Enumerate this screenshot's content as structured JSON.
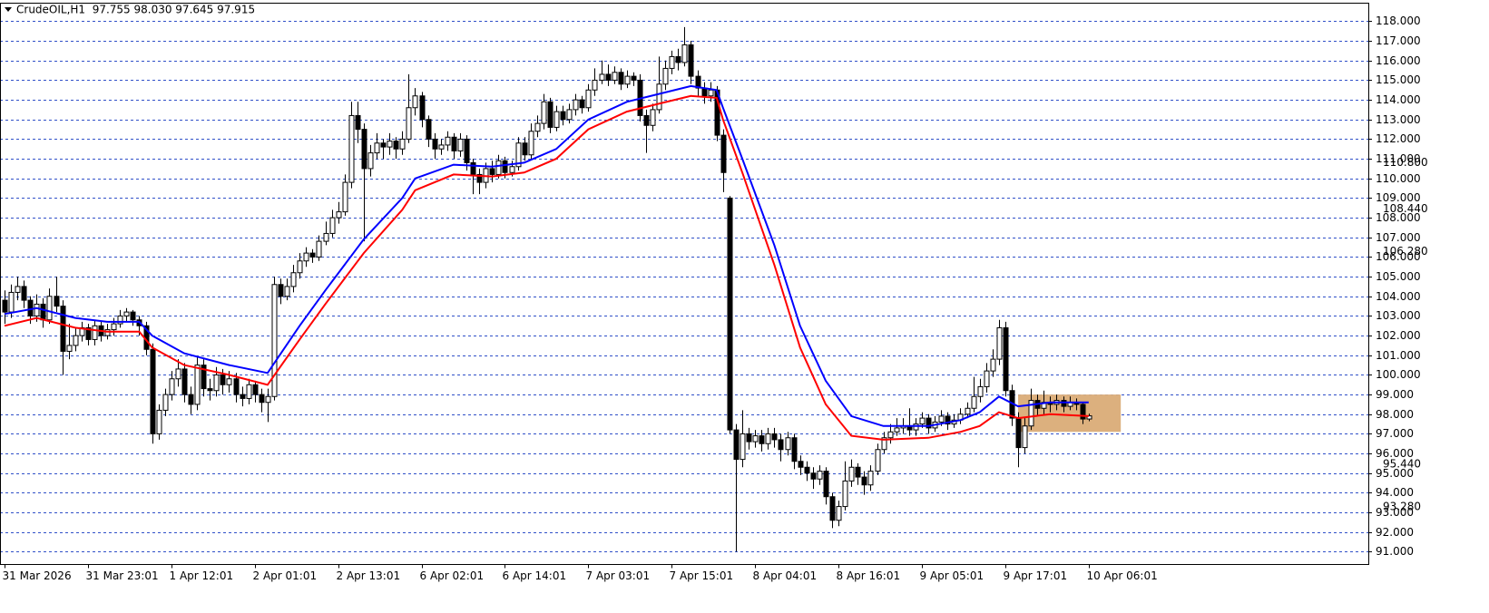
{
  "chart_data": {
    "type": "candlestick",
    "title": "CrudeOIL,H1  97.755 98.030 97.645 97.915",
    "categories": [
      "31 Mar 2026",
      null,
      null,
      null,
      null,
      null,
      null,
      null,
      null,
      null,
      null,
      null,
      null,
      "31 Mar 23:01",
      null,
      null,
      null,
      null,
      null,
      null,
      null,
      null,
      null,
      null,
      null,
      null,
      "1 Apr 12:01",
      null,
      null,
      null,
      null,
      null,
      null,
      null,
      null,
      null,
      null,
      null,
      null,
      "2 Apr 01:01",
      null,
      null,
      null,
      null,
      null,
      null,
      null,
      null,
      null,
      null,
      null,
      null,
      "2 Apr 13:01",
      null,
      null,
      null,
      null,
      null,
      null,
      null,
      null,
      null,
      null,
      null,
      null,
      "6 Apr 02:01",
      null,
      null,
      null,
      null,
      null,
      null,
      null,
      null,
      null,
      null,
      null,
      null,
      "6 Apr 14:01",
      null,
      null,
      null,
      null,
      null,
      null,
      null,
      null,
      null,
      null,
      null,
      null,
      "7 Apr 03:01",
      null,
      null,
      null,
      null,
      null,
      null,
      null,
      null,
      null,
      null,
      null,
      null,
      "7 Apr 15:01",
      null,
      null,
      null,
      null,
      null,
      null,
      null,
      null,
      null,
      null,
      null,
      null,
      "8 Apr 04:01",
      null,
      null,
      null,
      null,
      null,
      null,
      null,
      null,
      null,
      null,
      null,
      null,
      "8 Apr 16:01",
      null,
      null,
      null,
      null,
      null,
      null,
      null,
      null,
      null,
      null,
      null,
      null,
      "9 Apr 05:01",
      null,
      null,
      null,
      null,
      null,
      null,
      null,
      null,
      null,
      null,
      null,
      null,
      "9 Apr 17:01",
      null,
      null,
      null,
      null,
      null,
      null,
      null,
      null,
      null,
      null,
      null,
      null,
      "10 Apr 06:01"
    ],
    "open": [
      103.8,
      103.2,
      104.2,
      104.5,
      103.8,
      103.0,
      103.6,
      102.8,
      104.0,
      103.5,
      101.2,
      101.5,
      102.0,
      102.4,
      101.8,
      102.5,
      102.0,
      102.3,
      102.6,
      103.0,
      103.2,
      102.8,
      102.5,
      101.3,
      97.0,
      98.2,
      99.0,
      99.8,
      100.3,
      99.0,
      98.5,
      100.5,
      99.3,
      99.2,
      100.0,
      99.5,
      99.8,
      99.0,
      98.8,
      99.5,
      99.0,
      98.6,
      98.9,
      104.6,
      104.0,
      104.5,
      105.2,
      105.8,
      106.2,
      106.0,
      106.8,
      107.2,
      108.0,
      108.3,
      109.8,
      113.2,
      112.5,
      110.5,
      111.3,
      111.8,
      111.6,
      111.9,
      111.5,
      112.0,
      113.6,
      114.2,
      113.0,
      112.0,
      111.5,
      111.7,
      112.1,
      111.4,
      112.0,
      110.8,
      110.2,
      109.8,
      110.5,
      110.2,
      110.9,
      110.3,
      110.6,
      111.8,
      111.2,
      112.4,
      112.8,
      113.9,
      112.6,
      113.4,
      113.0,
      113.5,
      114.0,
      113.6,
      114.5,
      115.0,
      115.3,
      115.0,
      115.4,
      114.8,
      115.2,
      115.0,
      113.2,
      112.7,
      113.5,
      114.8,
      115.6,
      116.2,
      115.9,
      116.8,
      115.2,
      114.6,
      114.2,
      114.5,
      112.2,
      109.0,
      97.2,
      95.7,
      97.0,
      96.6,
      96.9,
      96.5,
      97.0,
      96.7,
      96.2,
      96.8,
      95.6,
      95.3,
      95.0,
      94.7,
      95.1,
      93.8,
      92.6,
      93.3,
      94.6,
      95.3,
      94.8,
      94.4,
      95.1,
      96.2,
      96.8,
      97.1,
      97.3,
      97.4,
      97.2,
      97.5,
      97.8,
      97.3,
      97.6,
      97.9,
      97.5,
      97.7,
      98.0,
      98.3,
      98.9,
      99.4,
      100.2,
      100.8,
      102.4,
      99.2,
      97.8,
      96.3,
      97.4,
      98.7,
      98.3,
      98.6,
      98.5,
      98.7,
      98.4,
      98.6,
      98.5,
      97.755
    ],
    "high": [
      104.3,
      104.6,
      105.0,
      104.8,
      104.0,
      104.1,
      103.9,
      104.4,
      105.0,
      103.8,
      102.6,
      102.4,
      102.7,
      102.6,
      102.8,
      102.7,
      102.6,
      102.9,
      103.3,
      103.4,
      103.3,
      103.0,
      102.7,
      101.6,
      98.5,
      99.3,
      100.2,
      100.8,
      100.6,
      99.4,
      100.9,
      100.8,
      99.8,
      100.4,
      100.3,
      100.2,
      100.1,
      99.4,
      99.8,
      99.7,
      99.3,
      99.3,
      105.0,
      104.9,
      104.9,
      105.6,
      106.2,
      106.5,
      106.4,
      107.1,
      107.8,
      108.4,
      108.8,
      110.2,
      113.9,
      113.9,
      112.8,
      111.7,
      112.3,
      112.0,
      112.3,
      112.1,
      112.4,
      115.3,
      114.6,
      114.4,
      113.2,
      112.3,
      112.0,
      112.4,
      112.3,
      112.3,
      112.2,
      111.0,
      110.5,
      110.8,
      110.9,
      111.2,
      111.1,
      110.9,
      112.1,
      112.1,
      112.8,
      113.2,
      114.3,
      114.1,
      113.7,
      113.7,
      113.8,
      114.3,
      114.2,
      114.8,
      115.6,
      116.0,
      115.8,
      115.7,
      115.6,
      115.5,
      115.4,
      115.3,
      113.5,
      113.8,
      116.2,
      116.0,
      116.5,
      116.6,
      117.7,
      117.0,
      115.5,
      114.9,
      114.9,
      114.7,
      112.5,
      109.1,
      97.5,
      98.2,
      97.3,
      97.2,
      97.2,
      97.3,
      97.3,
      97.0,
      97.1,
      97.0,
      95.9,
      95.6,
      95.3,
      95.4,
      95.3,
      94.0,
      93.6,
      95.6,
      95.7,
      95.5,
      95.1,
      95.4,
      96.5,
      97.1,
      97.5,
      97.8,
      97.8,
      98.3,
      97.8,
      98.1,
      98.0,
      97.9,
      98.2,
      98.1,
      98.0,
      98.3,
      98.6,
      99.9,
      99.8,
      100.6,
      101.3,
      102.8,
      102.7,
      99.5,
      98.1,
      97.8,
      99.3,
      99.0,
      99.2,
      98.9,
      99.0,
      98.9,
      98.9,
      98.8,
      98.6,
      98.03
    ],
    "low": [
      102.6,
      102.9,
      103.8,
      103.4,
      102.6,
      102.7,
      102.4,
      102.6,
      103.2,
      100.0,
      100.8,
      101.2,
      101.7,
      101.5,
      101.5,
      101.7,
      101.8,
      102.0,
      102.4,
      102.7,
      102.5,
      102.0,
      101.0,
      96.5,
      96.7,
      97.9,
      98.7,
      99.4,
      98.6,
      98.0,
      98.2,
      98.9,
      98.7,
      98.9,
      99.0,
      99.1,
      98.6,
      98.4,
      98.5,
      98.6,
      98.1,
      97.6,
      98.7,
      103.6,
      103.8,
      104.2,
      104.9,
      105.5,
      105.7,
      105.8,
      106.6,
      107.0,
      107.7,
      108.1,
      109.5,
      111.8,
      106.8,
      110.1,
      111.0,
      111.0,
      111.2,
      111.0,
      111.2,
      111.8,
      113.2,
      112.6,
      111.6,
      111.0,
      111.2,
      111.4,
      111.0,
      111.1,
      110.4,
      109.2,
      109.2,
      109.5,
      109.8,
      110.0,
      110.0,
      110.1,
      110.4,
      110.9,
      111.0,
      112.1,
      112.5,
      112.3,
      112.4,
      112.7,
      112.8,
      113.2,
      113.3,
      113.4,
      114.2,
      114.8,
      114.7,
      114.8,
      114.5,
      114.6,
      114.7,
      112.9,
      111.3,
      112.4,
      113.3,
      114.5,
      115.3,
      115.5,
      115.7,
      114.8,
      114.2,
      113.8,
      113.9,
      111.9,
      109.3,
      97.0,
      91.0,
      95.3,
      96.2,
      96.3,
      96.1,
      96.2,
      96.3,
      95.6,
      95.9,
      95.2,
      94.9,
      94.6,
      94.2,
      94.4,
      93.4,
      92.2,
      92.3,
      93.1,
      94.3,
      94.4,
      93.9,
      94.1,
      94.9,
      96.0,
      96.5,
      96.9,
      97.0,
      96.9,
      96.9,
      97.3,
      97.0,
      97.1,
      97.4,
      97.2,
      97.3,
      97.5,
      97.8,
      98.1,
      98.6,
      99.1,
      99.9,
      100.5,
      98.9,
      97.4,
      95.3,
      96.0,
      97.2,
      97.9,
      98.0,
      98.1,
      98.2,
      98.1,
      98.2,
      98.2,
      97.5,
      97.645
    ],
    "close": [
      103.2,
      104.2,
      104.5,
      103.8,
      103.0,
      103.6,
      102.8,
      104.0,
      103.5,
      101.2,
      101.5,
      102.0,
      102.4,
      101.8,
      102.5,
      102.0,
      102.3,
      102.6,
      103.0,
      103.2,
      102.8,
      102.5,
      101.3,
      97.0,
      98.2,
      99.0,
      99.8,
      100.3,
      99.0,
      98.5,
      100.5,
      99.3,
      99.2,
      100.0,
      99.5,
      99.8,
      99.0,
      98.8,
      99.5,
      99.0,
      98.6,
      98.9,
      104.6,
      104.0,
      104.5,
      105.2,
      105.8,
      106.2,
      106.0,
      106.8,
      107.2,
      108.0,
      108.3,
      109.8,
      113.2,
      112.5,
      110.5,
      111.3,
      111.8,
      111.6,
      111.9,
      111.5,
      112.0,
      113.6,
      114.2,
      113.0,
      112.0,
      111.5,
      111.7,
      112.1,
      111.4,
      112.0,
      110.8,
      110.2,
      109.8,
      110.5,
      110.2,
      110.9,
      110.3,
      110.6,
      111.8,
      111.2,
      112.4,
      112.8,
      113.9,
      112.6,
      113.4,
      113.0,
      113.5,
      114.0,
      113.6,
      114.5,
      115.0,
      115.3,
      115.0,
      115.4,
      114.8,
      115.2,
      115.0,
      113.2,
      112.7,
      113.5,
      114.8,
      115.6,
      116.2,
      115.9,
      116.8,
      115.2,
      114.6,
      114.2,
      114.5,
      112.2,
      110.3,
      97.2,
      95.7,
      97.0,
      96.6,
      96.9,
      96.5,
      97.0,
      96.7,
      96.2,
      96.8,
      95.6,
      95.3,
      95.0,
      94.7,
      95.1,
      93.8,
      92.6,
      93.3,
      94.6,
      95.3,
      94.8,
      94.4,
      95.1,
      96.2,
      96.8,
      97.1,
      97.3,
      97.4,
      97.2,
      97.5,
      97.8,
      97.3,
      97.6,
      97.9,
      97.5,
      97.7,
      98.0,
      98.3,
      98.9,
      99.4,
      100.2,
      100.8,
      102.4,
      99.2,
      97.8,
      96.3,
      97.4,
      98.7,
      98.3,
      98.6,
      98.5,
      98.7,
      98.4,
      98.6,
      98.5,
      97.755,
      97.915
    ],
    "series": [
      {
        "color": "#0000ff",
        "x": [
          0,
          5,
          11,
          16,
          21,
          23,
          28,
          35,
          41,
          46,
          50,
          56,
          62,
          64,
          70,
          76,
          81,
          86,
          91,
          97,
          102,
          107,
          111,
          112,
          115,
          120,
          124,
          128,
          132,
          137,
          144,
          149,
          152,
          155,
          158,
          163,
          169
        ],
        "values": [
          103.1,
          103.4,
          102.9,
          102.7,
          102.7,
          102.0,
          101.1,
          100.5,
          100.1,
          102.5,
          104.3,
          106.9,
          109.0,
          110.0,
          110.7,
          110.6,
          110.8,
          111.5,
          113.0,
          113.9,
          114.3,
          114.7,
          114.5,
          113.6,
          111.0,
          106.6,
          102.5,
          99.7,
          97.9,
          97.4,
          97.4,
          97.7,
          98.1,
          98.9,
          98.4,
          98.6,
          98.6
        ]
      },
      {
        "color": "#ff0000",
        "x": [
          0,
          5,
          11,
          16,
          21,
          23,
          28,
          35,
          41,
          46,
          50,
          56,
          62,
          64,
          70,
          76,
          81,
          86,
          91,
          97,
          102,
          107,
          111,
          112,
          115,
          120,
          124,
          128,
          132,
          137,
          144,
          149,
          152,
          155,
          158,
          163,
          169
        ],
        "values": [
          102.5,
          102.9,
          102.4,
          102.2,
          102.2,
          101.4,
          100.5,
          100.0,
          99.5,
          101.8,
          103.6,
          106.2,
          108.4,
          109.4,
          110.2,
          110.1,
          110.3,
          111.0,
          112.5,
          113.4,
          113.8,
          114.2,
          114.1,
          113.0,
          110.3,
          105.6,
          101.4,
          98.5,
          96.9,
          96.7,
          96.8,
          97.1,
          97.4,
          98.1,
          97.8,
          98.0,
          97.9
        ]
      }
    ],
    "zone": {
      "x": [
        158,
        174
      ],
      "y": [
        97.1,
        99.0
      ],
      "color": "#dcb07e"
    },
    "ylim": [
      90.35,
      118.92
    ],
    "yticks": [
      {
        "value": 91,
        "label": "91.000"
      },
      {
        "value": 92,
        "label": "92.000"
      },
      {
        "value": 93,
        "label": "93.000"
      },
      {
        "value": 94,
        "label": "94.000"
      },
      {
        "value": 95,
        "label": "95.000"
      },
      {
        "value": 96,
        "label": "96.000"
      },
      {
        "value": 97,
        "label": "97.000"
      },
      {
        "value": 98,
        "label": "98.000"
      },
      {
        "value": 99,
        "label": "99.000"
      },
      {
        "value": 100,
        "label": "100.000"
      },
      {
        "value": 101,
        "label": "101.000"
      },
      {
        "value": 102,
        "label": "102.000"
      },
      {
        "value": 103,
        "label": "103.000"
      },
      {
        "value": 104,
        "label": "104.000"
      },
      {
        "value": 105,
        "label": "105.000"
      },
      {
        "value": 106,
        "label": "106.000"
      },
      {
        "value": 107,
        "label": "107.000"
      },
      {
        "value": 108,
        "label": "108.000"
      },
      {
        "value": 109,
        "label": "109.000"
      },
      {
        "value": 110,
        "label": "110.000"
      },
      {
        "value": 111,
        "label": "111.000"
      },
      {
        "value": 112,
        "label": "112.000"
      },
      {
        "value": 113,
        "label": "113.000"
      },
      {
        "value": 114,
        "label": "114.000"
      },
      {
        "value": 115,
        "label": "115.000"
      },
      {
        "value": 116,
        "label": "116.000"
      },
      {
        "value": 117,
        "label": "117.000"
      },
      {
        "value": 118,
        "label": "118.000"
      }
    ],
    "level_labels": [
      {
        "value": 110.8,
        "label": "110.800"
      },
      {
        "value": 108.44,
        "label": "108.440"
      },
      {
        "value": 106.28,
        "label": "106.280"
      },
      {
        "value": 95.44,
        "label": "95.440"
      },
      {
        "value": 93.28,
        "label": "93.280"
      }
    ],
    "grid": true
  }
}
